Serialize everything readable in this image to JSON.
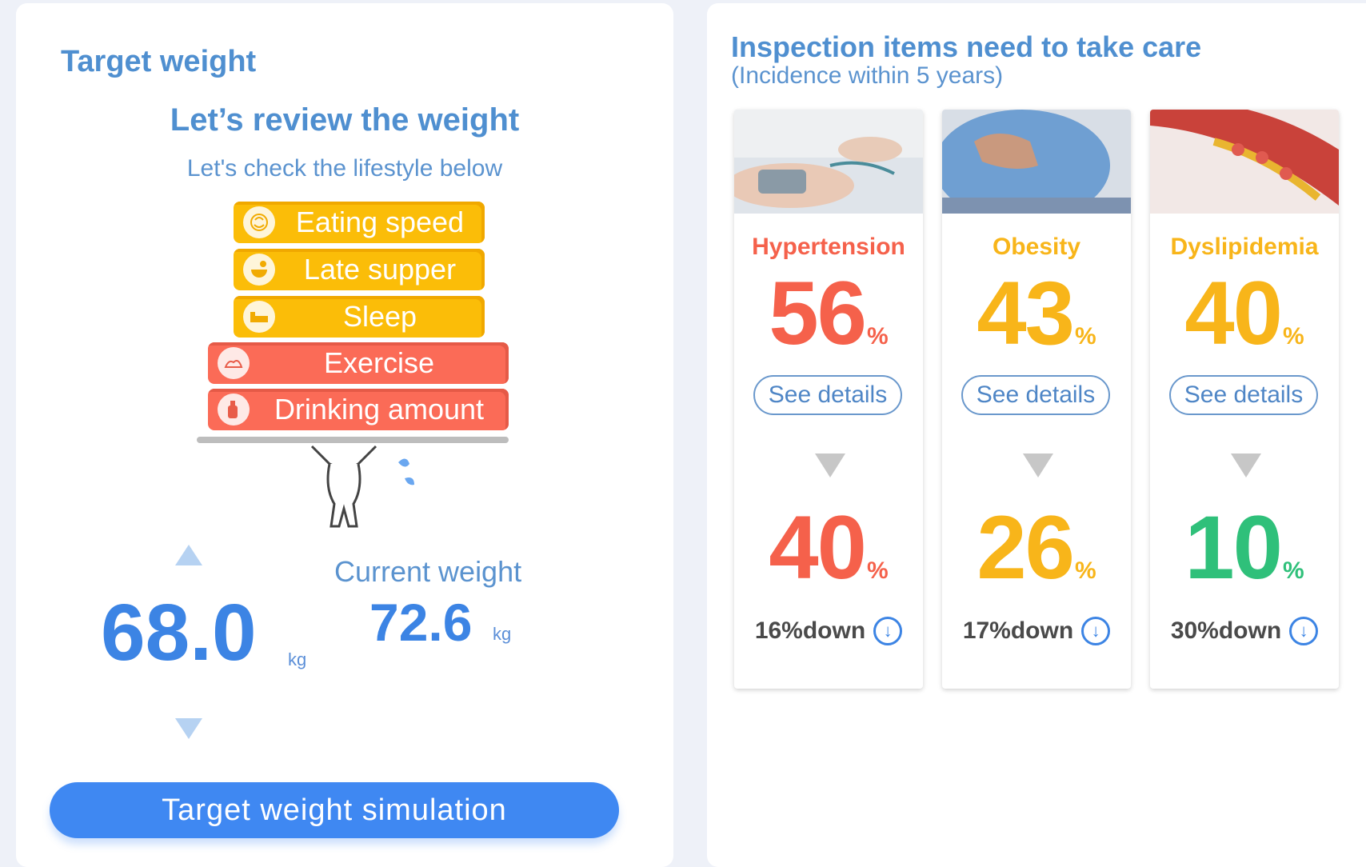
{
  "left": {
    "title": "Target weight",
    "headline": "Let’s review the weight",
    "subhead": "Let's check the lifestyle below",
    "lifestyle": [
      {
        "label": "Eating speed",
        "icon": "eating-speed-icon",
        "color": "#fbbd08"
      },
      {
        "label": "Late supper",
        "icon": "late-supper-icon",
        "color": "#fbbd08"
      },
      {
        "label": "Sleep",
        "icon": "sleep-icon",
        "color": "#fbbd08"
      },
      {
        "label": "Exercise",
        "icon": "exercise-icon",
        "color": "#fb6b57"
      },
      {
        "label": "Drinking amount",
        "icon": "drinking-icon",
        "color": "#fb6b57"
      }
    ],
    "target_weight": "68.0",
    "target_unit": "kg",
    "current_label": "Current weight",
    "current_weight": "72.6",
    "current_unit": "kg",
    "button_label": "Target weight simulation"
  },
  "right": {
    "title": "Inspection items need to take care",
    "subtitle": "(Incidence within 5 years)",
    "cards": [
      {
        "name": "Hypertension",
        "name_color": "#f5614b",
        "before": "56",
        "before_color": "#f5614b",
        "after": "40",
        "after_color": "#f5614b",
        "pct": "%",
        "details": "See details",
        "down": "16%down"
      },
      {
        "name": "Obesity",
        "name_color": "#f8b51a",
        "before": "43",
        "before_color": "#f8b51a",
        "after": "26",
        "after_color": "#f8b51a",
        "pct": "%",
        "details": "See details",
        "down": "17%down"
      },
      {
        "name": "Dyslipidemia",
        "name_color": "#f8b51a",
        "before": "40",
        "before_color": "#f8b51a",
        "after": "10",
        "after_color": "#2fc07a",
        "pct": "%",
        "details": "See details",
        "down": "30%down"
      }
    ]
  }
}
